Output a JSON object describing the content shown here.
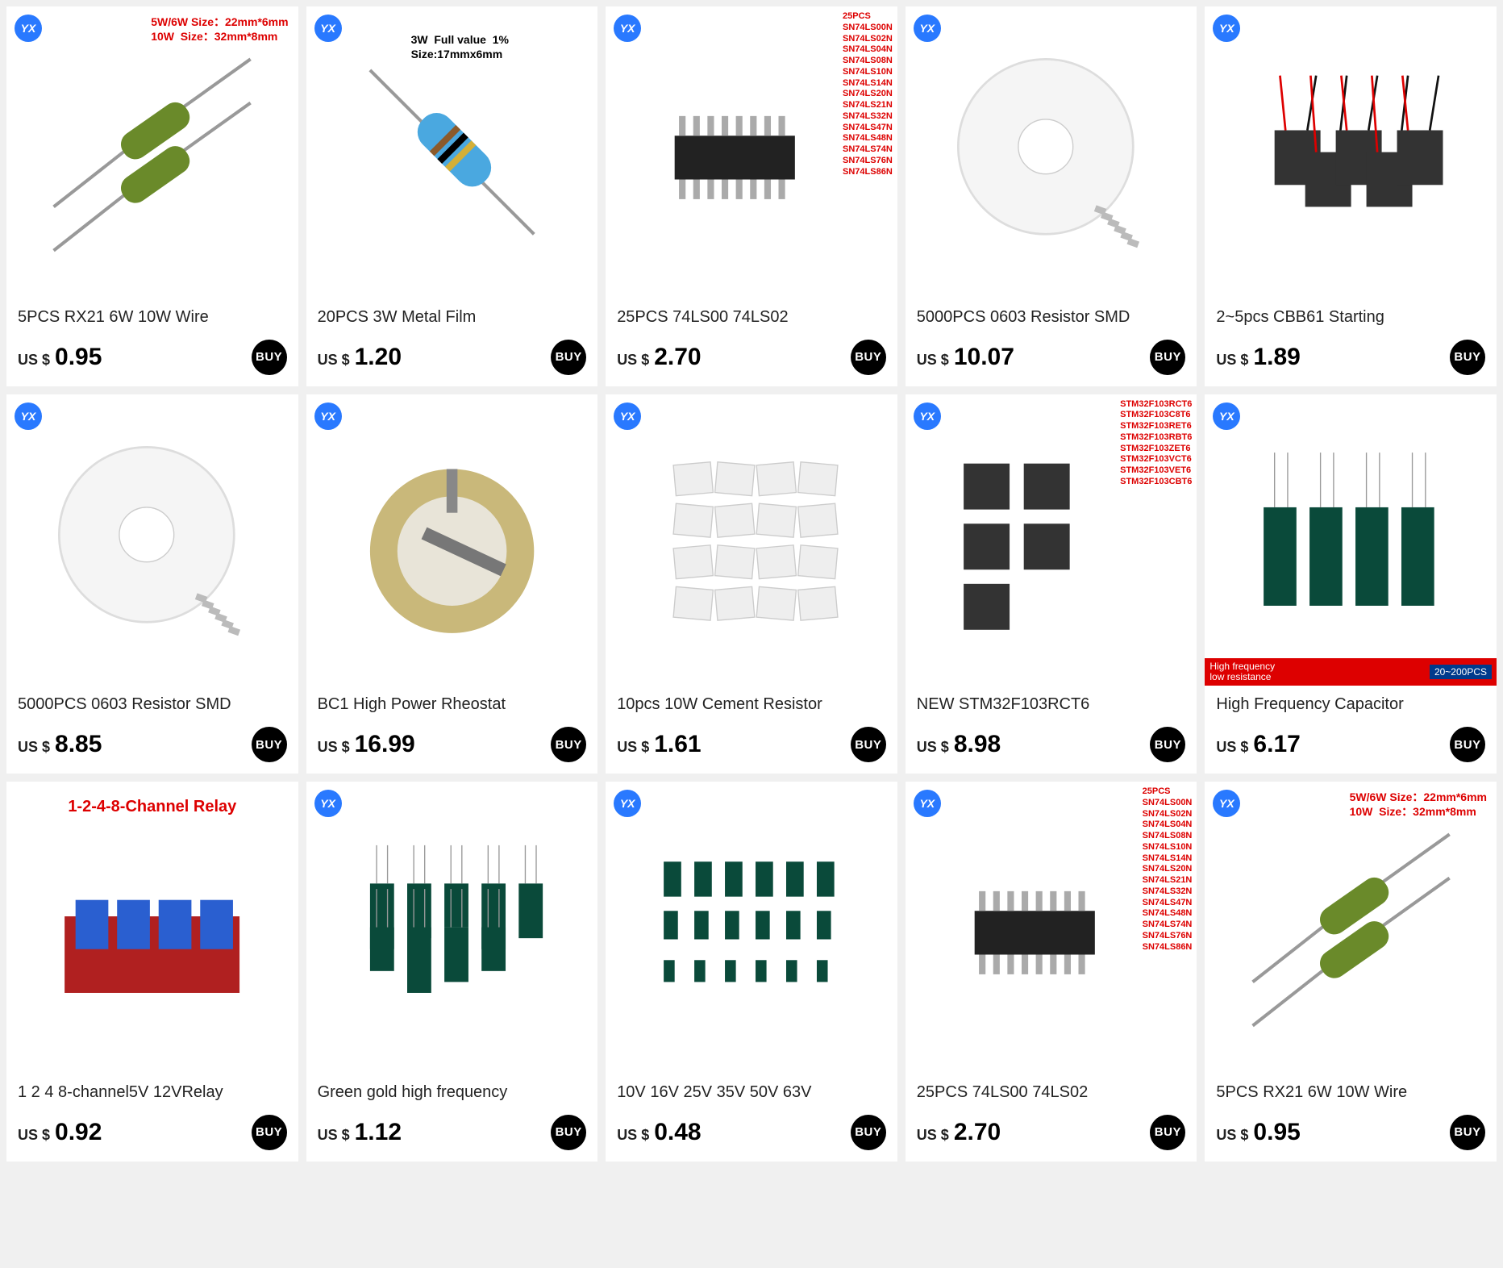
{
  "currency_label": "US $",
  "buy_label": "BUY",
  "badge_text": "YX",
  "colors": {
    "page_bg": "#f0f0f0",
    "card_bg": "#ffffff",
    "badge_bg": "#2979ff",
    "buy_bg": "#000000",
    "accent_red": "#d00000",
    "text": "#222222"
  },
  "products": [
    {
      "title": "5PCS RX21 6W 10W Wire",
      "price": "0.95",
      "overlay": {
        "style": "top-right red",
        "text": "5W/6W Size：22mm*6mm\n10W  Size：32mm*8mm"
      },
      "visual": "green-resistor"
    },
    {
      "title": "20PCS 3W Metal Film",
      "price": "1.20",
      "overlay": {
        "style": "mid-right black",
        "text": "3W  Full value  1%\nSize:17mmx6mm"
      },
      "visual": "blue-resistor"
    },
    {
      "title": "25PCS 74LS00 74LS02",
      "price": "2.70",
      "overlay": {
        "style": "top-right-red",
        "text": "25PCS\nSN74LS00N\nSN74LS02N\nSN74LS04N\nSN74LS08N\nSN74LS10N\nSN74LS14N\nSN74LS20N\nSN74LS21N\nSN74LS32N\nSN74LS47N\nSN74LS48N\nSN74LS74N\nSN74LS76N\nSN74LS86N"
      },
      "visual": "dip-chip"
    },
    {
      "title": "5000PCS 0603 Resistor SMD",
      "price": "10.07",
      "visual": "reel"
    },
    {
      "title": "2~5pcs CBB61 Starting",
      "price": "1.89",
      "visual": "black-caps"
    },
    {
      "title": "5000PCS 0603 Resistor SMD",
      "price": "8.85",
      "visual": "reel"
    },
    {
      "title": "BC1 High Power Rheostat",
      "price": "16.99",
      "visual": "rheostat"
    },
    {
      "title": "10pcs 10W Cement Resistor",
      "price": "1.61",
      "visual": "cement"
    },
    {
      "title": "NEW STM32F103RCT6",
      "price": "8.98",
      "overlay": {
        "style": "top-right-red",
        "text": "STM32F103RCT6\nSTM32F103C8T6\nSTM32F103RET6\nSTM32F103RBT6\nSTM32F103ZET6\nSTM32F103VCT6\nSTM32F103VET6\nSTM32F103CBT6"
      },
      "visual": "qfp-chips"
    },
    {
      "title": "High Frequency Capacitor",
      "price": "6.17",
      "banner": {
        "left": "High frequency\nlow resistance",
        "right": "20~200PCS"
      },
      "visual": "green-caps"
    },
    {
      "title": "1 2 4 8-channel5V 12VRelay",
      "price": "0.92",
      "no_badge": true,
      "overlay": {
        "style": "top-center red-big",
        "text": "1-2-4-8-Channel Relay"
      },
      "visual": "relay"
    },
    {
      "title": "Green gold high frequency",
      "price": "1.12",
      "visual": "green-caps-many"
    },
    {
      "title": "10V 16V 25V 35V 50V 63V",
      "price": "0.48",
      "visual": "green-caps-grid"
    },
    {
      "title": "25PCS 74LS00 74LS02",
      "price": "2.70",
      "overlay": {
        "style": "top-right-red",
        "text": "25PCS\nSN74LS00N\nSN74LS02N\nSN74LS04N\nSN74LS08N\nSN74LS10N\nSN74LS14N\nSN74LS20N\nSN74LS21N\nSN74LS32N\nSN74LS47N\nSN74LS48N\nSN74LS74N\nSN74LS76N\nSN74LS86N"
      },
      "visual": "dip-chip"
    },
    {
      "title": "5PCS RX21 6W 10W Wire",
      "price": "0.95",
      "overlay": {
        "style": "top-right red",
        "text": "5W/6W Size：22mm*6mm\n10W  Size：32mm*8mm"
      },
      "visual": "green-resistor"
    }
  ]
}
